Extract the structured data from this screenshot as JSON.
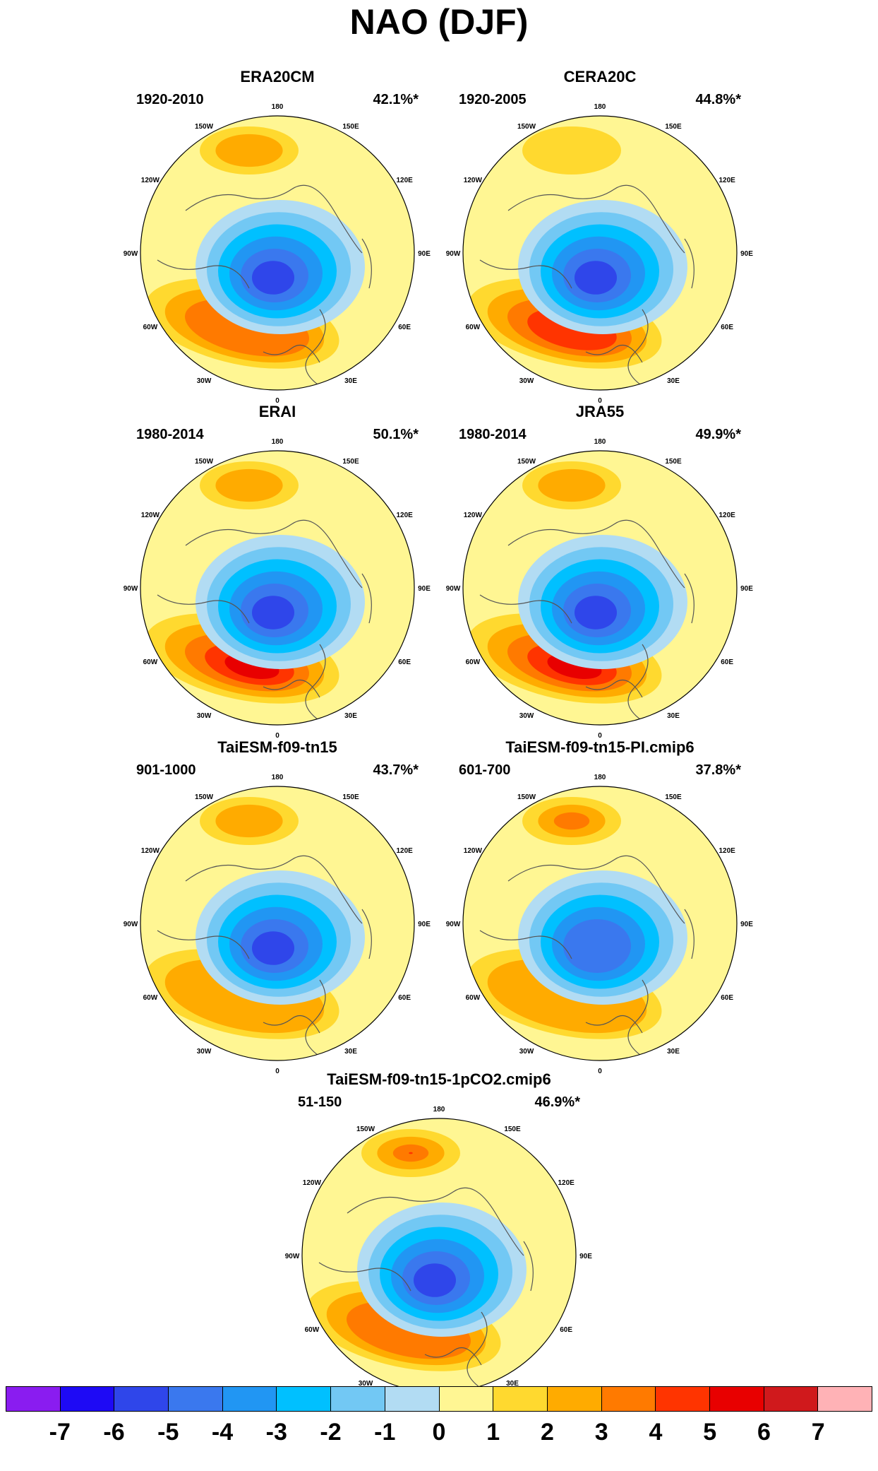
{
  "title": "NAO (DJF)",
  "lon_labels": [
    "180",
    "150E",
    "120E",
    "90E",
    "60E",
    "30E",
    "0",
    "30W",
    "60W",
    "90W",
    "120W",
    "150W"
  ],
  "panels": [
    {
      "title": "ERA20CM",
      "period": "1920-2010",
      "pct": "42.1%*",
      "low_peak": -6,
      "high_peak": 3,
      "pac_peak": 2
    },
    {
      "title": "CERA20C",
      "period": "1920-2005",
      "pct": "44.8%*",
      "low_peak": -6,
      "high_peak": 4,
      "pac_peak": 1
    },
    {
      "title": "ERAI",
      "period": "1980-2014",
      "pct": "50.1%*",
      "low_peak": -6,
      "high_peak": 5,
      "pac_peak": 2
    },
    {
      "title": "JRA55",
      "period": "1980-2014",
      "pct": "49.9%*",
      "low_peak": -6,
      "high_peak": 5,
      "pac_peak": 2
    },
    {
      "title": "TaiESM-f09-tn15",
      "period": "901-1000",
      "pct": "43.7%*",
      "low_peak": -6,
      "high_peak": 2,
      "pac_peak": 2
    },
    {
      "title": "TaiESM-f09-tn15-PI.cmip6",
      "period": "601-700",
      "pct": "37.8%*",
      "low_peak": -5,
      "high_peak": 2,
      "pac_peak": 3
    },
    {
      "title": "TaiESM-f09-tn15-1pCO2.cmip6",
      "period": "51-150",
      "pct": "46.9%*",
      "low_peak": -6,
      "high_peak": 3,
      "pac_peak": 4
    }
  ],
  "colorbar": {
    "labels": [
      "-7",
      "-6",
      "-5",
      "-4",
      "-3",
      "-2",
      "-1",
      "0",
      "1",
      "2",
      "3",
      "4",
      "5",
      "6",
      "7"
    ],
    "colors": [
      "#8a1cf0",
      "#1e0af5",
      "#2f46ea",
      "#3a78ee",
      "#2196f3",
      "#00c0ff",
      "#72c8f4",
      "#b2dcf3",
      "#fff693",
      "#ffd92f",
      "#ffab00",
      "#ff7a00",
      "#ff3400",
      "#e80000",
      "#d0191c",
      "#ffb2b6"
    ]
  }
}
